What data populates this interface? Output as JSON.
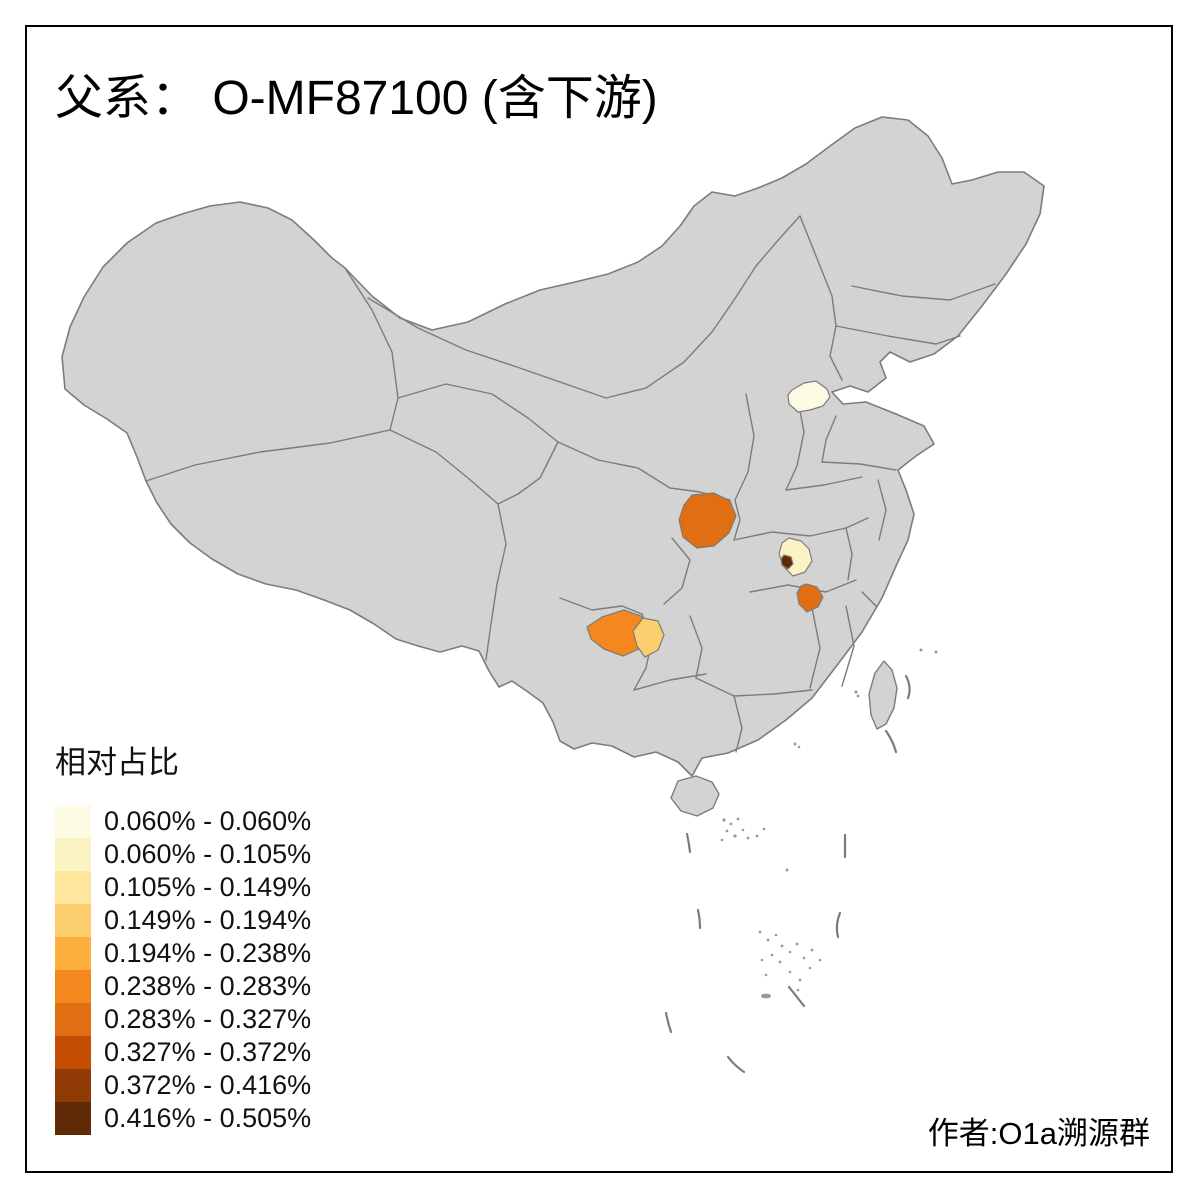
{
  "title": "父系： O-MF87100 (含下游)",
  "attribution": "作者:O1a溯源群",
  "legend": {
    "title": "相对占比",
    "classes": [
      {
        "label": "0.060% - 0.060%",
        "color": "#FDFBE4"
      },
      {
        "label": "0.060% - 0.105%",
        "color": "#FCF3C5"
      },
      {
        "label": "0.105% - 0.149%",
        "color": "#FEE79D"
      },
      {
        "label": "0.149% - 0.194%",
        "color": "#FDCE6E"
      },
      {
        "label": "0.194% - 0.238%",
        "color": "#FCAE3E"
      },
      {
        "label": "0.238% - 0.283%",
        "color": "#F5871F"
      },
      {
        "label": "0.283% - 0.327%",
        "color": "#E06E12"
      },
      {
        "label": "0.327% - 0.372%",
        "color": "#C24D03"
      },
      {
        "label": "0.372% - 0.416%",
        "color": "#903B06"
      },
      {
        "label": "0.416% - 0.505%",
        "color": "#5F2B07"
      }
    ]
  },
  "map": {
    "land_color": "#D3D3D3",
    "border_color": "#7C7C7C",
    "island_speck_color": "#9A9A9A",
    "regions": [
      {
        "id": "region-1",
        "screen_area": "north-china-plain",
        "class_index": 0
      },
      {
        "id": "region-2",
        "screen_area": "central-china",
        "class_index": 1
      },
      {
        "id": "region-3",
        "screen_area": "central-china-small",
        "class_index": 9
      },
      {
        "id": "region-4",
        "screen_area": "central-west",
        "class_index": 6
      },
      {
        "id": "region-5",
        "screen_area": "south-central",
        "class_index": 6
      },
      {
        "id": "region-6",
        "screen_area": "southwest-west",
        "class_index": 5
      },
      {
        "id": "region-7",
        "screen_area": "southwest-east",
        "class_index": 3
      }
    ]
  },
  "chart_data": {
    "type": "choropleth",
    "title": "父系： O-MF87100 (含下游)",
    "legend_title": "相对占比",
    "unit": "relative frequency %",
    "classes": [
      "0.060% - 0.060%",
      "0.060% - 0.105%",
      "0.105% - 0.149%",
      "0.149% - 0.194%",
      "0.194% - 0.238%",
      "0.238% - 0.283%",
      "0.283% - 0.327%",
      "0.327% - 0.372%",
      "0.372% - 0.416%",
      "0.416% - 0.505%"
    ],
    "palette": [
      "#FDFBE4",
      "#FCF3C5",
      "#FEE79D",
      "#FDCE6E",
      "#FCAE3E",
      "#F5871F",
      "#E06E12",
      "#C24D03",
      "#903B06",
      "#5F2B07"
    ],
    "regions": [
      {
        "id": "region-1",
        "screen_area": "north-china-plain",
        "value_range": "0.060% - 0.060%"
      },
      {
        "id": "region-2",
        "screen_area": "central-china",
        "value_range": "0.060% - 0.105%"
      },
      {
        "id": "region-3",
        "screen_area": "central-china-small",
        "value_range": "0.416% - 0.505%"
      },
      {
        "id": "region-4",
        "screen_area": "central-west",
        "value_range": "0.283% - 0.327%"
      },
      {
        "id": "region-5",
        "screen_area": "south-central",
        "value_range": "0.283% - 0.327%"
      },
      {
        "id": "region-6",
        "screen_area": "southwest-west",
        "value_range": "0.238% - 0.283%"
      },
      {
        "id": "region-7",
        "screen_area": "southwest-east",
        "value_range": "0.149% - 0.194%"
      }
    ]
  }
}
